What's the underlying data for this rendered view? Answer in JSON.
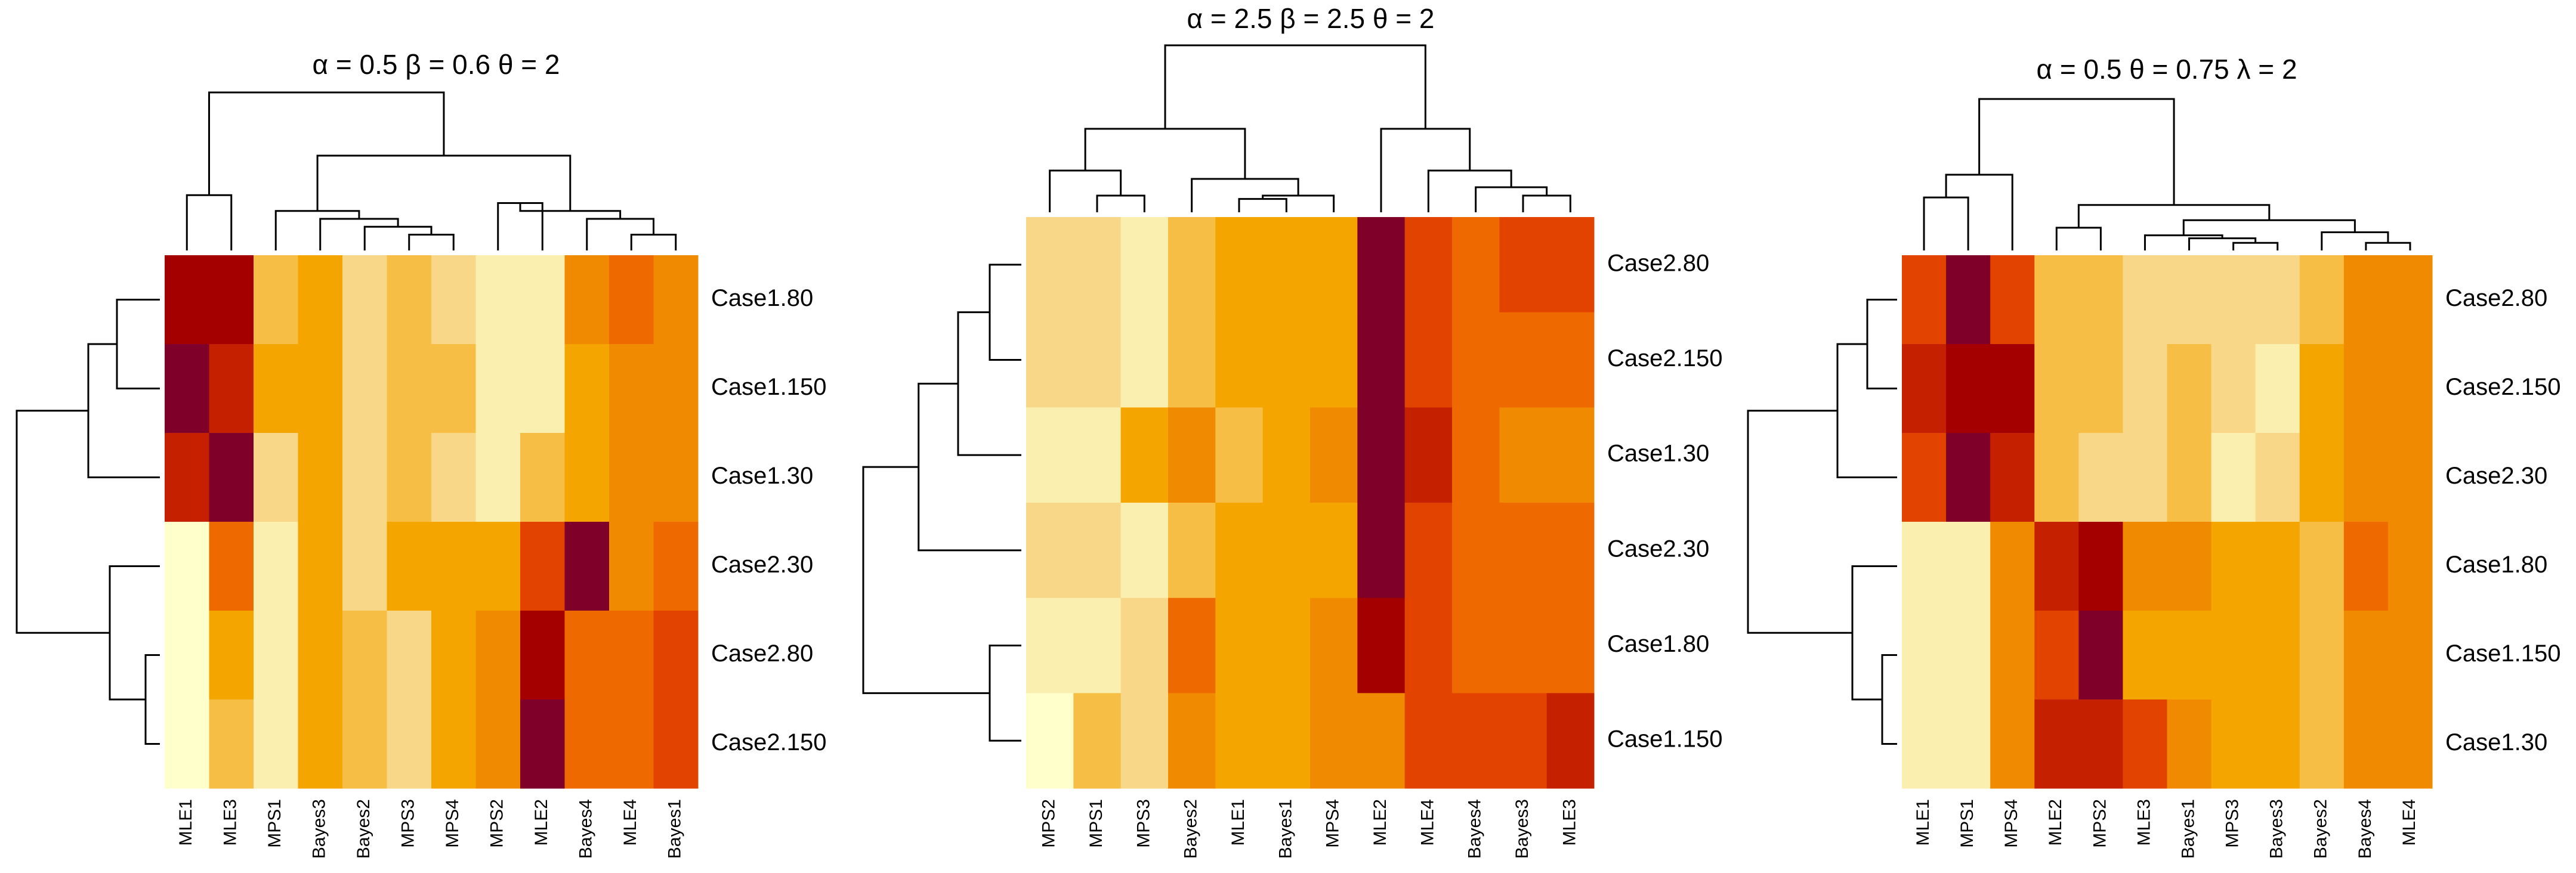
{
  "chart_data": [
    {
      "type": "heatmap",
      "title": "α = 0.5  β = 0.6  θ = 2",
      "columns": [
        "MLE1",
        "MLE3",
        "MPS1",
        "Bayes3",
        "Bayes2",
        "MPS3",
        "MPS4",
        "MPS2",
        "MLE2",
        "Bayes4",
        "MLE4",
        "Bayes1"
      ],
      "rows": [
        "Case1.80",
        "Case1.150",
        "Case1.30",
        "Case2.30",
        "Case2.80",
        "Case2.150"
      ],
      "values": [
        [
          9,
          9,
          3,
          4,
          2,
          3,
          2,
          1,
          1,
          5,
          6,
          5
        ],
        [
          10,
          8,
          4,
          4,
          2,
          3,
          3,
          1,
          1,
          4,
          5,
          5
        ],
        [
          8,
          10,
          2,
          4,
          2,
          3,
          2,
          1,
          3,
          4,
          5,
          5
        ],
        [
          0,
          6,
          1,
          4,
          2,
          4,
          4,
          4,
          7,
          10,
          5,
          6
        ],
        [
          0,
          4,
          1,
          4,
          3,
          2,
          4,
          5,
          9,
          6,
          6,
          7
        ],
        [
          0,
          3,
          1,
          4,
          3,
          2,
          4,
          5,
          10,
          6,
          6,
          7
        ]
      ],
      "zlim": [
        0,
        10
      ],
      "colors": [
        "#FFFFCC",
        "#FBEFAF",
        "#F8D888",
        "#F7BE46",
        "#F5A500",
        "#F08A00",
        "#EE6A00",
        "#E24400",
        "#C52000",
        "#A50000",
        "#7F0028"
      ]
    },
    {
      "type": "heatmap",
      "title": "α = 2.5  β = 2.5  θ = 2",
      "columns": [
        "MPS2",
        "MPS1",
        "MPS3",
        "Bayes2",
        "MLE1",
        "Bayes1",
        "MPS4",
        "MLE2",
        "MLE4",
        "Bayes4",
        "Bayes3",
        "MLE3"
      ],
      "rows": [
        "Case2.80",
        "Case2.150",
        "Case1.30",
        "Case2.30",
        "Case1.80",
        "Case1.150"
      ],
      "values": [
        [
          2,
          2,
          1,
          3,
          4,
          4,
          4,
          10,
          7,
          6,
          7,
          7
        ],
        [
          2,
          2,
          1,
          3,
          4,
          4,
          4,
          10,
          7,
          6,
          6,
          6
        ],
        [
          1,
          1,
          4,
          5,
          3,
          4,
          5,
          10,
          8,
          6,
          5,
          5
        ],
        [
          2,
          2,
          1,
          3,
          4,
          4,
          4,
          10,
          7,
          6,
          6,
          6
        ],
        [
          1,
          1,
          2,
          6,
          4,
          4,
          5,
          9,
          7,
          6,
          6,
          6
        ],
        [
          0,
          3,
          2,
          5,
          4,
          4,
          5,
          5,
          7,
          7,
          7,
          8
        ]
      ],
      "zlim": [
        0,
        10
      ],
      "colors": [
        "#FFFFCC",
        "#FBEFAF",
        "#F8D888",
        "#F7BE46",
        "#F5A500",
        "#F08A00",
        "#EE6A00",
        "#E24400",
        "#C52000",
        "#A50000",
        "#7F0028"
      ]
    },
    {
      "type": "heatmap",
      "title": "α = 0.5  θ = 0.75  λ = 2",
      "columns": [
        "MLE1",
        "MPS1",
        "MPS4",
        "MLE2",
        "MPS2",
        "MLE3",
        "Bayes1",
        "MPS3",
        "Bayes3",
        "Bayes2",
        "Bayes4",
        "MLE4"
      ],
      "rows": [
        "Case2.80",
        "Case2.150",
        "Case2.30",
        "Case1.80",
        "Case1.150",
        "Case1.30"
      ],
      "values": [
        [
          7,
          10,
          7,
          3,
          3,
          2,
          2,
          2,
          2,
          3,
          5,
          5
        ],
        [
          8,
          9,
          9,
          3,
          3,
          2,
          3,
          2,
          1,
          4,
          5,
          5
        ],
        [
          7,
          10,
          8,
          3,
          2,
          2,
          3,
          1,
          2,
          4,
          5,
          5
        ],
        [
          1,
          1,
          5,
          8,
          9,
          5,
          5,
          4,
          4,
          3,
          6,
          5
        ],
        [
          1,
          1,
          5,
          7,
          10,
          4,
          4,
          4,
          4,
          3,
          5,
          5
        ],
        [
          1,
          1,
          5,
          8,
          8,
          7,
          5,
          4,
          4,
          3,
          5,
          5
        ]
      ],
      "zlim": [
        0,
        10
      ],
      "colors": [
        "#FFFFCC",
        "#FBEFAF",
        "#F8D888",
        "#F7BE46",
        "#F5A500",
        "#F08A00",
        "#EE6A00",
        "#E24400",
        "#C52000",
        "#A50000",
        "#7F0028"
      ]
    }
  ]
}
